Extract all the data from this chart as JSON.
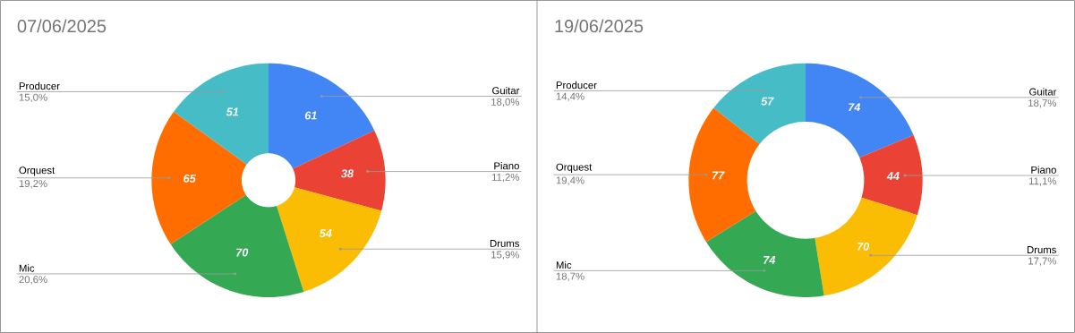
{
  "chart_data": [
    {
      "type": "donut",
      "title": "07/06/2025",
      "categories": [
        "Guitar",
        "Piano",
        "Drums",
        "Mic",
        "Orquest",
        "Producer"
      ],
      "values": [
        61,
        38,
        54,
        70,
        65,
        51
      ],
      "colors": [
        "#4285f4",
        "#ea4335",
        "#fbbc04",
        "#34a853",
        "#ff6d01",
        "#46bdc6"
      ],
      "data_labels": true,
      "annotations": [
        "18,0%",
        "11,2%",
        "15,9%",
        "20,6%",
        "19,2%",
        "15,0%"
      ]
    },
    {
      "type": "donut",
      "title": "19/06/2025",
      "categories": [
        "Guitar",
        "Piano",
        "Drums",
        "Mic",
        "Orquest",
        "Producer"
      ],
      "values": [
        74,
        44,
        70,
        74,
        77,
        57
      ],
      "colors": [
        "#4285f4",
        "#ea4335",
        "#fbbc04",
        "#34a853",
        "#ff6d01",
        "#46bdc6"
      ],
      "data_labels": true,
      "annotations": [
        "18,7%",
        "11,1%",
        "17,7%",
        "18,7%",
        "19,4%",
        "14,4%"
      ]
    }
  ]
}
